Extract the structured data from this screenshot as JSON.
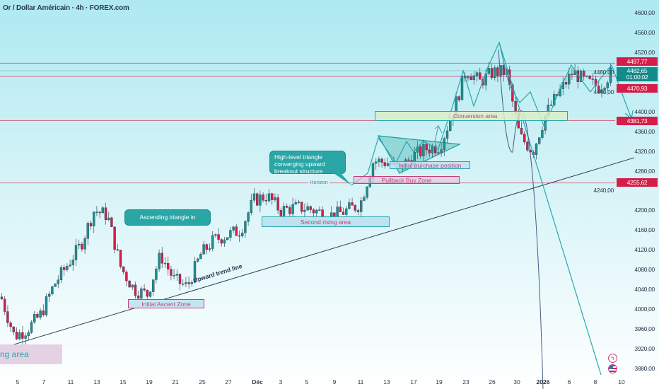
{
  "header": {
    "title": "Or / Dollar Américain · 4h · FOREX.com"
  },
  "chart_data": {
    "type": "candlestick",
    "price_axis": {
      "min": 3880,
      "max": 4600,
      "step": 40,
      "ticks": [
        "4600,00",
        "4560,00",
        "4520,00",
        "4480,00",
        "4440,00",
        "4400,00",
        "4360,00",
        "4320,00",
        "4280,00",
        "4240,00",
        "4200,00",
        "4160,00",
        "4120,00",
        "4080,00",
        "4040,00",
        "4000,00",
        "3960,00",
        "3920,00",
        "3880,00"
      ]
    },
    "time_axis": {
      "ticks": [
        {
          "label": "5"
        },
        {
          "label": "7"
        },
        {
          "label": "11"
        },
        {
          "label": "13"
        },
        {
          "label": "15"
        },
        {
          "label": "19"
        },
        {
          "label": "21"
        },
        {
          "label": "25"
        },
        {
          "label": "27"
        },
        {
          "label": "Déc",
          "bold": true
        },
        {
          "label": "3"
        },
        {
          "label": "5"
        },
        {
          "label": "9"
        },
        {
          "label": "11"
        },
        {
          "label": "13"
        },
        {
          "label": "17"
        },
        {
          "label": "19"
        },
        {
          "label": "23"
        },
        {
          "label": "26"
        },
        {
          "label": "30"
        },
        {
          "label": "2026",
          "bold": true
        },
        {
          "label": "6"
        },
        {
          "label": "8"
        },
        {
          "label": "10"
        }
      ]
    },
    "approx_close_path": [
      4025,
      3945,
      3960,
      3990,
      4050,
      4090,
      4130,
      4200,
      4190,
      4085,
      4040,
      4030,
      4110,
      4060,
      4045,
      4110,
      4140,
      4150,
      4160,
      4220,
      4230,
      4200,
      4205,
      4205,
      4196,
      4189,
      4200,
      4212,
      4300,
      4297,
      4285,
      4310,
      4325,
      4330,
      4400,
      4485,
      4460,
      4480,
      4480,
      4350,
      4320,
      4397,
      4440,
      4480,
      4460,
      4450,
      4482
    ],
    "colors": {
      "up": "#1f8f8f",
      "down": "#d51d48",
      "wick": "#55606a"
    },
    "levels": [
      {
        "price": 4497.77,
        "label": "4497,77",
        "color": "#d51d48"
      },
      {
        "price": 4470.93,
        "label": "4470,93",
        "color": "#d51d48"
      },
      {
        "price": 4381.73,
        "label": "4381,73",
        "color": "#d51d48"
      },
      {
        "price": 4255.62,
        "label": "4255,62",
        "color": "#d51d48"
      }
    ],
    "current": {
      "price": 4482.65,
      "label": "4482,65",
      "countdown": "01:00:02",
      "color": "#138b8b"
    },
    "horizon_label": "Horizon",
    "trendline_label": "Upward trend line"
  },
  "annotations": {
    "callout_triangle": "High-level triangle converging upward breakout structure",
    "callout_ascending": "Ascending triangle in convergence",
    "zone_second_rising": "Second rising area",
    "zone_pullback": "Pullback Buy Zone",
    "zone_initial_purchase": "Initial purchase position",
    "zone_conversion": "Conversion area",
    "zone_initial_ascent": "Initial Ascent Zone",
    "zone_rising": "ng area"
  },
  "icons": [
    "lightning-icon",
    "us-flag-icon"
  ]
}
